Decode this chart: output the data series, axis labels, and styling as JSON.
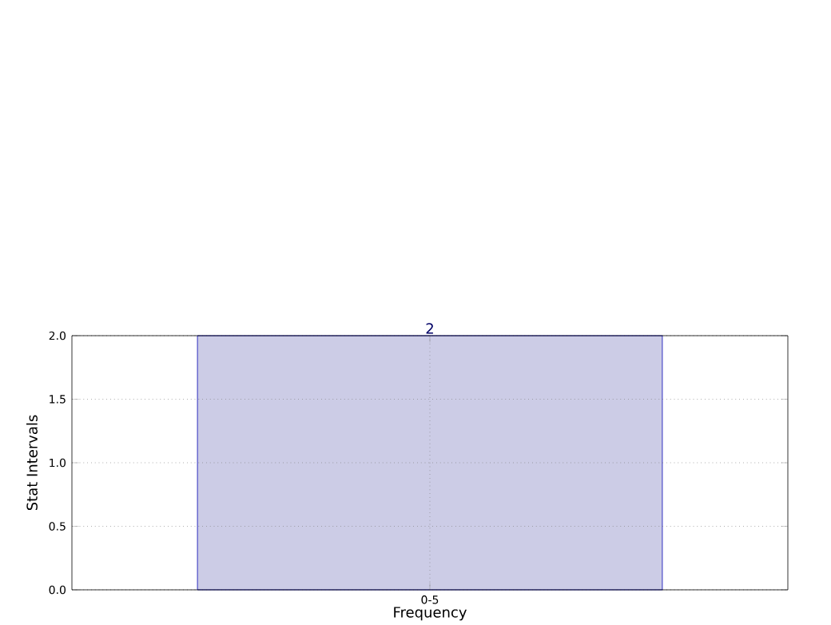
{
  "chart_data": {
    "type": "bar",
    "categories": [
      "0-5"
    ],
    "values": [
      2
    ],
    "color": "#cccce6",
    "xlabel": "Frequency",
    "ylabel": "Stat Intervals",
    "ylim": [
      0,
      2
    ],
    "yticks": [
      {
        "value": 0,
        "label": "0.0"
      },
      {
        "value": 0.5,
        "label": "0.5"
      },
      {
        "value": 1,
        "label": "1.0"
      },
      {
        "value": 1.5,
        "label": "1.5"
      },
      {
        "value": 2,
        "label": "2.0"
      }
    ],
    "grid": true,
    "data_labels": true
  }
}
